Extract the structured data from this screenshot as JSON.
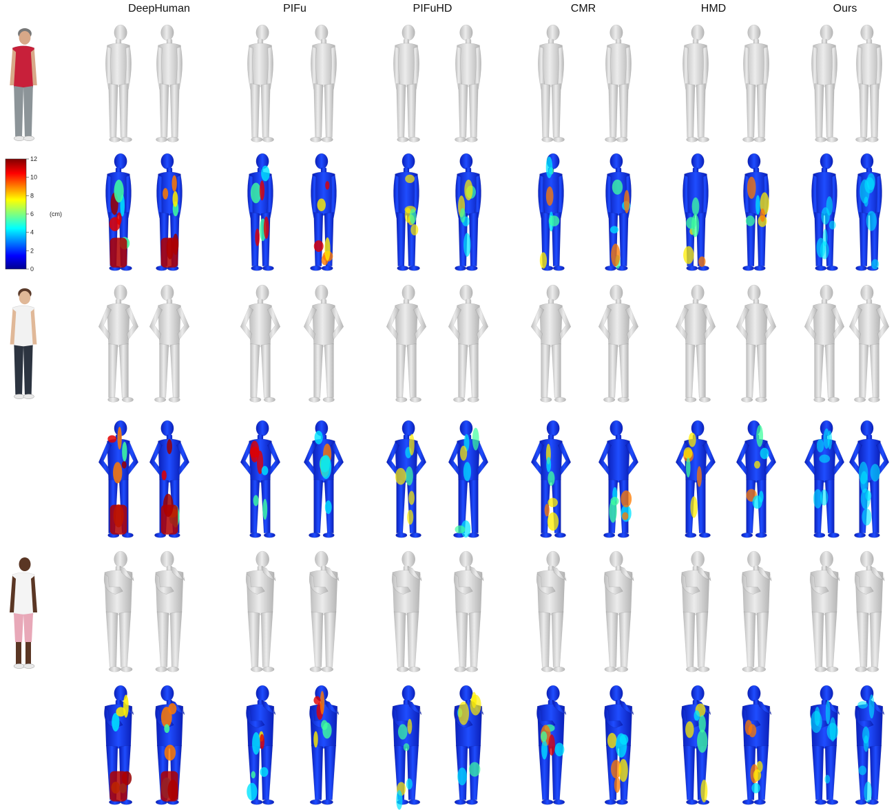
{
  "figure": {
    "methods": [
      "DeepHuman",
      "PIFu",
      "PIFuHD",
      "CMR",
      "HMD",
      "Ours"
    ],
    "colorbar": {
      "ticks": [
        "0",
        "2",
        "4",
        "6",
        "8",
        "10",
        "12"
      ],
      "unit": "(cm)",
      "min": 0,
      "max": 12
    },
    "subjects": [
      {
        "shirt": "#c8203a",
        "pants": "#8c9498",
        "skin": "#d8a888",
        "hair": "#777777"
      },
      {
        "shirt": "#f2f2f2",
        "pants": "#2c3440",
        "skin": "#e0b898",
        "hair": "#5a3a2a"
      },
      {
        "shirt": "#f4f4f4",
        "pants": "#e8a8b8",
        "skin": "#5a3624",
        "hair": "#ffffff"
      }
    ]
  }
}
